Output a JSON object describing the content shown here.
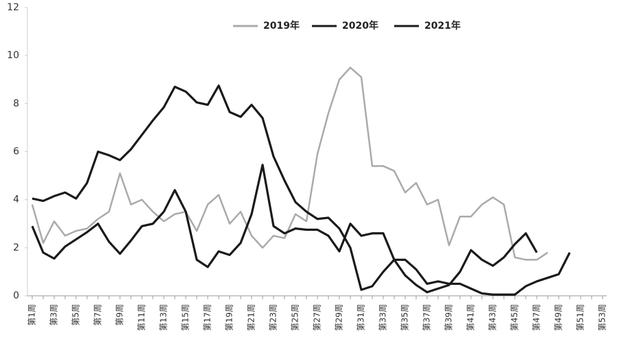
{
  "chart_data": {
    "type": "line",
    "categories": [
      "第1周",
      null,
      "第3周",
      null,
      "第5周",
      null,
      "第7周",
      null,
      "第9周",
      null,
      "第11周",
      null,
      "第13周",
      null,
      "第15周",
      null,
      "第17周",
      null,
      "第19周",
      null,
      "第21周",
      null,
      "第23周",
      null,
      "第25周",
      null,
      "第27周",
      null,
      "第29周",
      null,
      "第31周",
      null,
      "第33周",
      null,
      "第35周",
      null,
      "第37周",
      null,
      "第39周",
      null,
      "第41周",
      null,
      "第43周",
      null,
      "第45周",
      null,
      "第47周",
      null,
      "第49周",
      null,
      "第51周",
      null,
      "第53周"
    ],
    "series": [
      {
        "name": "2019年",
        "color": "#aaaaaa",
        "values": [
          3.8,
          2.2,
          3.1,
          2.5,
          2.7,
          2.8,
          3.2,
          3.5,
          5.1,
          3.8,
          4.0,
          3.5,
          3.1,
          3.4,
          3.5,
          2.7,
          3.8,
          4.2,
          3.0,
          3.5,
          2.5,
          2.0,
          2.5,
          2.4,
          3.4,
          3.1,
          5.9,
          7.6,
          9.0,
          9.5,
          9.1,
          5.4,
          5.4,
          5.2,
          4.3,
          4.7,
          3.8,
          4.0,
          2.1,
          3.3,
          3.3,
          3.8,
          4.1,
          3.8,
          1.6,
          1.5,
          1.5,
          1.8,
          null,
          null,
          null,
          null,
          null
        ]
      },
      {
        "name": "2020年",
        "color": "#1a1a1a",
        "values": [
          4.05,
          3.95,
          4.15,
          4.3,
          4.05,
          4.7,
          6.0,
          5.85,
          5.65,
          6.1,
          6.7,
          7.3,
          7.85,
          8.7,
          8.5,
          8.05,
          7.95,
          8.75,
          7.65,
          7.45,
          7.95,
          7.4,
          5.8,
          4.8,
          3.9,
          3.5,
          3.2,
          3.25,
          2.8,
          2.0,
          0.25,
          0.4,
          1.0,
          1.5,
          1.5,
          1.1,
          0.5,
          0.6,
          0.5,
          0.5,
          0.3,
          0.1,
          0.05,
          0.05,
          0.05,
          0.4,
          0.6,
          0.75,
          0.9,
          1.8,
          null,
          null,
          null
        ]
      },
      {
        "name": "2021年",
        "color": "#1a1a1a",
        "values": [
          2.9,
          1.8,
          1.55,
          2.05,
          2.35,
          2.65,
          3.0,
          2.25,
          1.75,
          2.3,
          2.9,
          3.0,
          3.5,
          4.4,
          3.5,
          1.5,
          1.2,
          1.85,
          1.7,
          2.2,
          3.4,
          5.45,
          2.9,
          2.6,
          2.8,
          2.75,
          2.75,
          2.5,
          1.85,
          3.0,
          2.5,
          2.6,
          2.6,
          1.5,
          0.85,
          0.45,
          0.15,
          0.3,
          0.45,
          1.0,
          1.9,
          1.5,
          1.25,
          1.6,
          2.15,
          2.6,
          1.8,
          null,
          null,
          null,
          null,
          null,
          null
        ]
      }
    ],
    "ylim": [
      0,
      12
    ],
    "yticks": [
      0,
      2,
      4,
      6,
      8,
      10,
      12
    ],
    "legend": "top"
  }
}
